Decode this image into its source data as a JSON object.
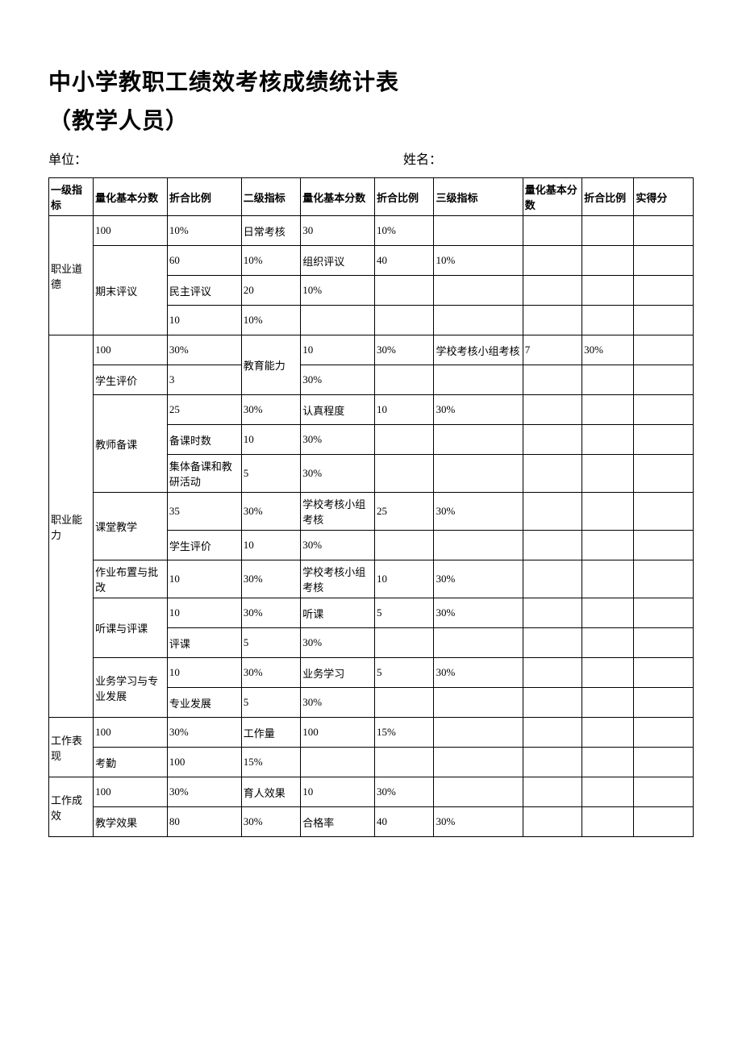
{
  "title_line1": "中小学教职工绩效考核成绩统计表",
  "title_line2": "（教学人员）",
  "meta": {
    "unit_label": "单位：",
    "name_label": "姓名："
  },
  "headers": {
    "l1": "一级指标",
    "qb1": "量化基本分数",
    "r1": "折合比例",
    "l2": "二级指标",
    "qb2": "量化基本分数",
    "r2": "折合比例",
    "l3": "三级指标",
    "qb3": "量化基本分数",
    "r3": "折合比例",
    "score": "实得分"
  },
  "rows": [
    {
      "l1": "职业道德",
      "l1_span": 4,
      "qb1": "100",
      "r1": "10%",
      "l2": "日常考核",
      "qb2": "30",
      "r2": "10%"
    },
    {
      "qb1": "期末评议",
      "qb1_span": 3,
      "r1": "60",
      "l2": "10%",
      "qb2": "组织评议",
      "r2": "40",
      "l3": "10%"
    },
    {
      "r1": "民主评议",
      "l2": "20",
      "qb2": "10%"
    },
    {
      "qb1_in": "学生评价",
      "r1": "10",
      "l2": "10%"
    },
    {
      "l1": "职业能力",
      "l1_span": 12,
      "qb1": "100",
      "r1": "30%",
      "l2": "教育能力",
      "l2_span": 2,
      "qb2": "10",
      "r2": "30%",
      "l3": "学校考核小组考核",
      "qb3": "7",
      "r3": "30%"
    },
    {
      "qb1": "学生评价",
      "r1": "3",
      "qb2_in": "30%"
    },
    {
      "qb1": "教师备课",
      "qb1_span": 3,
      "r1": "25",
      "l2": "30%",
      "qb2": "认真程度",
      "r2": "10",
      "l3": "30%"
    },
    {
      "r1": "备课时数",
      "l2": "10",
      "qb2": "30%"
    },
    {
      "r1": "集体备课和教研活动",
      "l2": "5",
      "qb2": "30%"
    },
    {
      "qb1": "课堂教学",
      "qb1_span": 2,
      "r1": "35",
      "l2": "30%",
      "qb2": "学校考核小组考核",
      "r2": "25",
      "l3": "30%"
    },
    {
      "r1": "学生评价",
      "l2": "10",
      "qb2": "30%"
    },
    {
      "qb1": "作业布置与批改",
      "r1": "10",
      "l2": "30%",
      "qb2": "学校考核小组考核",
      "r2": "10",
      "l3": "30%"
    },
    {
      "qb1": "听课与评课",
      "qb1_span": 2,
      "r1": "10",
      "l2": "30%",
      "qb2": "听课",
      "r2": "5",
      "l3": "30%"
    },
    {
      "r1": "评课",
      "l2": "5",
      "qb2": "30%"
    },
    {
      "qb1": "业务学习与专业发展",
      "qb1_span": 2,
      "r1": "10",
      "l2": "30%",
      "qb2": "业务学习",
      "r2": "5",
      "l3": "30%"
    },
    {
      "r1": "专业发展",
      "l2": "5",
      "qb2": "30%"
    },
    {
      "l1": "工作表现",
      "l1_span": 2,
      "qb1": "100",
      "r1": "30%",
      "l2": "工作量",
      "qb2": "100",
      "r2": "15%"
    },
    {
      "qb1": "考勤",
      "r1": "100",
      "l2": "15%"
    },
    {
      "l1": "工作成效",
      "l1_span": 2,
      "qb1": "100",
      "r1": "30%",
      "l2": "育人效果",
      "qb2": "10",
      "r2": "30%"
    },
    {
      "qb1": "教学效果",
      "r1": "80",
      "l2": "30%",
      "qb2": "合格率",
      "r2": "40",
      "l3": "30%"
    }
  ],
  "style": {
    "background": "#ffffff",
    "text_color": "#000000",
    "border_color": "#000000",
    "title_fontsize": 28,
    "cell_fontsize": 13,
    "meta_fontsize": 16
  }
}
